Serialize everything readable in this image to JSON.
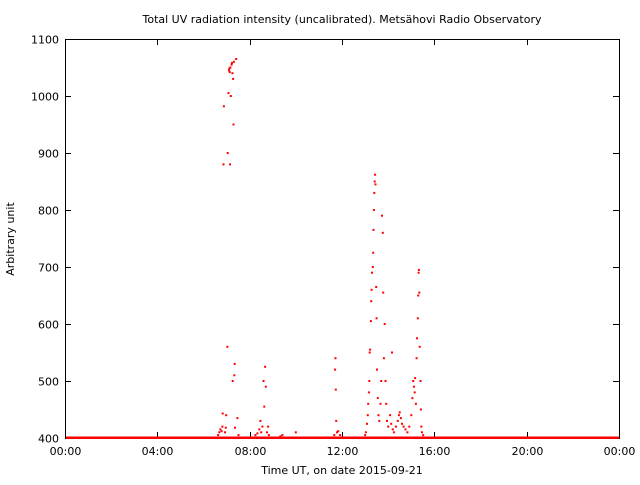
{
  "chart_data": {
    "type": "scatter",
    "title": "Total UV radiation intensity (uncalibrated). Metsähovi Radio Observatory",
    "xlabel": "Time UT, on date 2015-09-21",
    "ylabel": "Arbitrary unit",
    "xlim": [
      "00:00",
      "24:00"
    ],
    "ylim": [
      400,
      1100
    ],
    "x_ticks": [
      "00:00",
      "04:00",
      "08:00",
      "12:00",
      "16:00",
      "20:00",
      "00:00"
    ],
    "y_ticks": [
      400,
      500,
      600,
      700,
      800,
      900,
      1000,
      1100
    ],
    "grid": false,
    "baseline": 400,
    "series": [
      {
        "color": "#ff0000",
        "marker": "dot",
        "points": [
          [
            "06:38",
            405
          ],
          [
            "06:41",
            410
          ],
          [
            "06:44",
            415
          ],
          [
            "06:47",
            412
          ],
          [
            "06:49",
            420
          ],
          [
            "06:50",
            443
          ],
          [
            "06:52",
            880
          ],
          [
            "06:53",
            982
          ],
          [
            "06:56",
            410
          ],
          [
            "06:58",
            418
          ],
          [
            "06:59",
            440
          ],
          [
            "07:02",
            560
          ],
          [
            "07:03",
            900
          ],
          [
            "07:05",
            1005
          ],
          [
            "07:06",
            1045
          ],
          [
            "07:07",
            1048
          ],
          [
            "07:08",
            1042
          ],
          [
            "07:09",
            880
          ],
          [
            "07:10",
            1050
          ],
          [
            "07:11",
            1000
          ],
          [
            "07:13",
            1055
          ],
          [
            "07:14",
            1058
          ],
          [
            "07:15",
            1040
          ],
          [
            "07:16",
            500
          ],
          [
            "07:17",
            1030
          ],
          [
            "07:18",
            950
          ],
          [
            "07:19",
            1060
          ],
          [
            "07:20",
            510
          ],
          [
            "07:21",
            530
          ],
          [
            "07:22",
            418
          ],
          [
            "07:25",
            1065
          ],
          [
            "07:28",
            435
          ],
          [
            "07:31",
            405
          ],
          [
            "08:15",
            405
          ],
          [
            "08:20",
            408
          ],
          [
            "08:25",
            415
          ],
          [
            "08:28",
            430
          ],
          [
            "08:30",
            410
          ],
          [
            "08:33",
            420
          ],
          [
            "08:36",
            500
          ],
          [
            "08:38",
            455
          ],
          [
            "08:40",
            525
          ],
          [
            "08:42",
            490
          ],
          [
            "08:45",
            410
          ],
          [
            "08:48",
            420
          ],
          [
            "08:50",
            405
          ],
          [
            "09:20",
            403
          ],
          [
            "09:25",
            405
          ],
          [
            "10:00",
            410
          ],
          [
            "11:40",
            405
          ],
          [
            "11:42",
            520
          ],
          [
            "11:43",
            540
          ],
          [
            "11:44",
            485
          ],
          [
            "11:45",
            430
          ],
          [
            "11:47",
            410
          ],
          [
            "11:50",
            412
          ],
          [
            "11:55",
            405
          ],
          [
            "13:00",
            405
          ],
          [
            "13:02",
            410
          ],
          [
            "13:05",
            425
          ],
          [
            "13:07",
            440
          ],
          [
            "13:08",
            460
          ],
          [
            "13:10",
            480
          ],
          [
            "13:11",
            500
          ],
          [
            "13:12",
            550
          ],
          [
            "13:13",
            555
          ],
          [
            "13:15",
            605
          ],
          [
            "13:16",
            640
          ],
          [
            "13:17",
            660
          ],
          [
            "13:18",
            690
          ],
          [
            "13:20",
            700
          ],
          [
            "13:21",
            725
          ],
          [
            "13:22",
            765
          ],
          [
            "13:23",
            800
          ],
          [
            "13:24",
            830
          ],
          [
            "13:25",
            850
          ],
          [
            "13:26",
            862
          ],
          [
            "13:27",
            845
          ],
          [
            "13:29",
            665
          ],
          [
            "13:30",
            610
          ],
          [
            "13:31",
            520
          ],
          [
            "13:33",
            470
          ],
          [
            "13:35",
            440
          ],
          [
            "13:37",
            430
          ],
          [
            "13:40",
            460
          ],
          [
            "13:42",
            500
          ],
          [
            "13:44",
            790
          ],
          [
            "13:46",
            760
          ],
          [
            "13:47",
            655
          ],
          [
            "13:49",
            540
          ],
          [
            "13:51",
            600
          ],
          [
            "13:53",
            500
          ],
          [
            "13:55",
            460
          ],
          [
            "13:57",
            430
          ],
          [
            "14:00",
            420
          ],
          [
            "14:05",
            440
          ],
          [
            "14:08",
            425
          ],
          [
            "14:10",
            550
          ],
          [
            "14:12",
            415
          ],
          [
            "14:15",
            410
          ],
          [
            "14:20",
            420
          ],
          [
            "14:25",
            430
          ],
          [
            "14:28",
            440
          ],
          [
            "14:30",
            445
          ],
          [
            "14:33",
            435
          ],
          [
            "14:36",
            425
          ],
          [
            "14:40",
            420
          ],
          [
            "14:45",
            415
          ],
          [
            "14:50",
            410
          ],
          [
            "14:55",
            420
          ],
          [
            "15:00",
            440
          ],
          [
            "15:03",
            470
          ],
          [
            "15:05",
            500
          ],
          [
            "15:07",
            490
          ],
          [
            "15:09",
            480
          ],
          [
            "15:10",
            505
          ],
          [
            "15:12",
            460
          ],
          [
            "15:14",
            540
          ],
          [
            "15:15",
            575
          ],
          [
            "15:17",
            610
          ],
          [
            "15:18",
            650
          ],
          [
            "15:19",
            690
          ],
          [
            "15:20",
            695
          ],
          [
            "15:21",
            655
          ],
          [
            "15:22",
            560
          ],
          [
            "15:24",
            500
          ],
          [
            "15:25",
            450
          ],
          [
            "15:26",
            420
          ],
          [
            "15:28",
            410
          ],
          [
            "15:31",
            405
          ]
        ]
      }
    ]
  }
}
